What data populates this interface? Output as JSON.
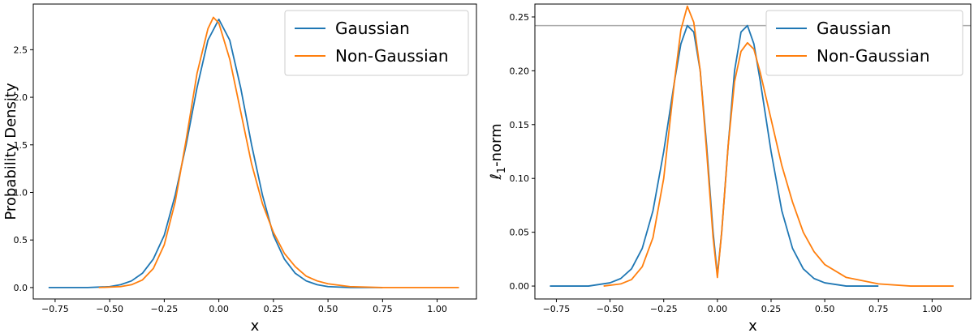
{
  "chart_data": [
    {
      "type": "line",
      "xlabel": "x",
      "ylabel": "Probability Density",
      "xlim": [
        -0.85,
        1.18
      ],
      "ylim": [
        -0.12,
        2.98
      ],
      "xticks": [
        -0.75,
        -0.5,
        -0.25,
        0.0,
        0.25,
        0.5,
        0.75,
        1.0
      ],
      "xtick_labels": [
        "−0.75",
        "−0.50",
        "−0.25",
        "0.00",
        "0.25",
        "0.50",
        "0.75",
        "1.00"
      ],
      "yticks": [
        0.0,
        0.5,
        1.0,
        1.5,
        2.0,
        2.5
      ],
      "ytick_labels": [
        "0.0",
        "0.5",
        "1.0",
        "1.5",
        "2.0",
        "2.5"
      ],
      "legend": "upper right",
      "grid": false,
      "series": [
        {
          "name": "Gaussian",
          "color": "#1f77b4",
          "x": [
            -0.78,
            -0.6,
            -0.5,
            -0.45,
            -0.4,
            -0.35,
            -0.3,
            -0.25,
            -0.2,
            -0.15,
            -0.1,
            -0.05,
            0.0,
            0.05,
            0.1,
            0.15,
            0.2,
            0.25,
            0.3,
            0.35,
            0.4,
            0.45,
            0.5,
            0.6,
            0.75
          ],
          "y": [
            0.0,
            0.0,
            0.01,
            0.03,
            0.07,
            0.15,
            0.3,
            0.55,
            0.97,
            1.5,
            2.1,
            2.6,
            2.82,
            2.6,
            2.1,
            1.5,
            0.97,
            0.55,
            0.3,
            0.15,
            0.07,
            0.03,
            0.01,
            0.0,
            0.0
          ]
        },
        {
          "name": "Non-Gaussian",
          "color": "#ff7f0e",
          "x": [
            -0.55,
            -0.45,
            -0.4,
            -0.35,
            -0.3,
            -0.25,
            -0.2,
            -0.15,
            -0.1,
            -0.05,
            -0.025,
            0.0,
            0.05,
            0.1,
            0.15,
            0.2,
            0.25,
            0.3,
            0.35,
            0.4,
            0.45,
            0.5,
            0.6,
            0.75,
            0.9,
            1.1
          ],
          "y": [
            0.0,
            0.01,
            0.03,
            0.08,
            0.2,
            0.45,
            0.9,
            1.55,
            2.25,
            2.72,
            2.84,
            2.78,
            2.4,
            1.85,
            1.3,
            0.88,
            0.58,
            0.36,
            0.22,
            0.12,
            0.07,
            0.04,
            0.01,
            0.0,
            0.0,
            0.0
          ]
        }
      ]
    },
    {
      "type": "line",
      "xlabel": "x",
      "ylabel": "ℓ1-norm",
      "ylabel_main": "ℓ",
      "ylabel_sub": "1",
      "ylabel_rest": "-norm",
      "xlim": [
        -0.85,
        1.18
      ],
      "ylim": [
        -0.012,
        0.262
      ],
      "xticks": [
        -0.75,
        -0.5,
        -0.25,
        0.0,
        0.25,
        0.5,
        0.75,
        1.0
      ],
      "xtick_labels": [
        "−0.75",
        "−0.50",
        "−0.25",
        "0.00",
        "0.25",
        "0.50",
        "0.75",
        "1.00"
      ],
      "yticks": [
        0.0,
        0.05,
        0.1,
        0.15,
        0.2,
        0.25
      ],
      "ytick_labels": [
        "0.00",
        "0.05",
        "0.10",
        "0.15",
        "0.20",
        "0.25"
      ],
      "hline": {
        "y": 0.242,
        "color": "#aaaaaa"
      },
      "legend": "upper right",
      "grid": false,
      "series": [
        {
          "name": "Gaussian",
          "color": "#1f77b4",
          "x": [
            -0.78,
            -0.6,
            -0.5,
            -0.45,
            -0.4,
            -0.35,
            -0.3,
            -0.25,
            -0.2,
            -0.17,
            -0.14,
            -0.11,
            -0.08,
            -0.05,
            -0.02,
            0.0,
            0.02,
            0.05,
            0.08,
            0.11,
            0.14,
            0.17,
            0.2,
            0.25,
            0.3,
            0.35,
            0.4,
            0.45,
            0.5,
            0.6,
            0.75
          ],
          "y": [
            0.0,
            0.0,
            0.003,
            0.007,
            0.016,
            0.035,
            0.07,
            0.125,
            0.19,
            0.225,
            0.242,
            0.236,
            0.2,
            0.13,
            0.05,
            0.01,
            0.05,
            0.13,
            0.2,
            0.236,
            0.242,
            0.225,
            0.19,
            0.125,
            0.07,
            0.035,
            0.016,
            0.007,
            0.003,
            0.0,
            0.0
          ]
        },
        {
          "name": "Non-Gaussian",
          "color": "#ff7f0e",
          "x": [
            -0.53,
            -0.45,
            -0.4,
            -0.35,
            -0.3,
            -0.25,
            -0.2,
            -0.17,
            -0.14,
            -0.11,
            -0.08,
            -0.05,
            -0.02,
            0.0,
            0.02,
            0.05,
            0.08,
            0.11,
            0.14,
            0.17,
            0.2,
            0.25,
            0.3,
            0.35,
            0.4,
            0.45,
            0.5,
            0.6,
            0.75,
            0.9,
            1.1
          ],
          "y": [
            0.0,
            0.002,
            0.006,
            0.018,
            0.045,
            0.1,
            0.19,
            0.238,
            0.26,
            0.245,
            0.2,
            0.125,
            0.045,
            0.008,
            0.05,
            0.13,
            0.19,
            0.218,
            0.226,
            0.22,
            0.198,
            0.155,
            0.112,
            0.078,
            0.05,
            0.032,
            0.02,
            0.008,
            0.002,
            0.0,
            0.0
          ]
        }
      ]
    }
  ]
}
